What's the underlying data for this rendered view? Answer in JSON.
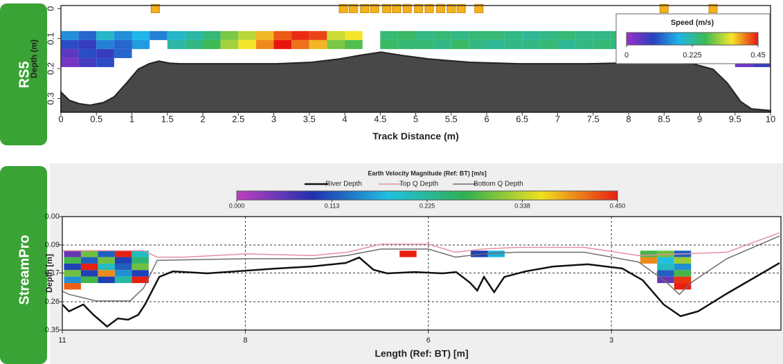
{
  "chart_data": [
    {
      "type": "heatmap",
      "label": "RS5",
      "xlabel": "Track Distance (m)",
      "ylabel": "Depth (m)",
      "xlim": [
        0,
        10
      ],
      "xticks": [
        0,
        0.5,
        1,
        1.5,
        2,
        2.5,
        3,
        3.5,
        4,
        4.5,
        5,
        5.5,
        6,
        6.5,
        7,
        7.5,
        8,
        8.5,
        9,
        9.5,
        10
      ],
      "ylim": [
        -0.01,
        0.345
      ],
      "yticks": [
        0,
        0.1,
        0.2,
        0.3
      ],
      "y_inverted": true,
      "grid": false,
      "colorbar": {
        "title": "Speed (m/s)",
        "clim": [
          0,
          0.45
        ],
        "ticks": [
          0,
          0.225,
          0.45
        ],
        "colors": [
          "#9b30c8",
          "#2b3fbf",
          "#1fb5e8",
          "#3cba54",
          "#f5e52a",
          "#e8150f"
        ]
      },
      "cells": {
        "x": [
          0.125,
          0.375,
          0.625,
          0.875,
          1.125,
          1.375,
          1.625,
          1.875,
          2.125,
          2.375,
          2.625,
          2.875,
          3.125,
          3.375,
          3.625,
          3.875,
          4.125,
          4.375,
          4.625,
          4.875,
          5.125,
          5.375,
          5.625,
          5.875,
          6.125,
          6.375,
          6.625,
          6.875,
          7.125,
          7.375,
          7.625,
          7.875,
          8.125,
          8.375,
          8.625,
          8.875,
          9.125,
          9.375,
          9.625,
          9.875
        ],
        "depth": [
          0.09,
          0.12,
          0.15,
          0.18
        ],
        "speed": [
          [
            0.15,
            0.12,
            0.2,
            0.15,
            0.18,
            0.14,
            0.2,
            0.22,
            0.25,
            0.3,
            0.33,
            0.38,
            0.42,
            0.44,
            0.43,
            0.34,
            0.36,
            null,
            0.25,
            0.26,
            0.24,
            0.25,
            0.24,
            0.25,
            0.25,
            0.24,
            0.23,
            0.24,
            0.25,
            0.24,
            0.24,
            0.25,
            0.24,
            0.23,
            0.24,
            0.24,
            0.23,
            null,
            0.1,
            0.12
          ],
          [
            0.1,
            0.08,
            0.14,
            0.12,
            0.16,
            null,
            0.22,
            0.24,
            0.27,
            0.32,
            0.36,
            0.4,
            0.45,
            0.41,
            0.38,
            0.3,
            0.28,
            null,
            0.26,
            0.25,
            0.25,
            0.24,
            0.26,
            0.24,
            0.23,
            0.24,
            0.24,
            0.25,
            0.23,
            0.24,
            0.25,
            0.24,
            0.24,
            0.23,
            0.24,
            0.25,
            0.24,
            null,
            0.08,
            0.11
          ],
          [
            0.05,
            0.1,
            0.08,
            0.12,
            null,
            null,
            null,
            null,
            null,
            null,
            null,
            null,
            null,
            null,
            null,
            null,
            null,
            null,
            null,
            null,
            null,
            null,
            null,
            null,
            null,
            null,
            null,
            null,
            null,
            null,
            null,
            null,
            null,
            null,
            null,
            null,
            null,
            null,
            0.06,
            0.09
          ],
          [
            0.03,
            0.07,
            0.1,
            null,
            null,
            null,
            null,
            null,
            null,
            null,
            null,
            null,
            null,
            null,
            null,
            null,
            null,
            null,
            null,
            null,
            null,
            null,
            null,
            null,
            null,
            null,
            null,
            null,
            null,
            null,
            null,
            null,
            null,
            null,
            null,
            null,
            null,
            null,
            0.04,
            0.08
          ]
        ]
      },
      "series": [
        {
          "color": "#484848",
          "fill": true,
          "x": [
            0,
            0.12,
            0.26,
            0.41,
            0.6,
            0.75,
            0.94,
            1.09,
            1.24,
            1.38,
            1.53,
            1.68,
            2.07,
            3.04,
            3.53,
            3.92,
            4.21,
            4.51,
            4.8,
            5.19,
            5.76,
            6.46,
            7.43,
            8.41,
            8.9,
            9.19,
            9.39,
            9.58,
            9.73,
            10
          ],
          "values": [
            0.278,
            0.306,
            0.317,
            0.322,
            0.313,
            0.294,
            0.244,
            0.202,
            0.184,
            0.175,
            0.182,
            0.184,
            0.184,
            0.184,
            0.179,
            0.168,
            0.156,
            0.145,
            0.156,
            0.168,
            0.179,
            0.184,
            0.184,
            0.179,
            0.184,
            0.202,
            0.248,
            0.31,
            0.334,
            0.34
          ]
        }
      ],
      "markers": {
        "color": "#f7b21a",
        "x": [
          1.33,
          3.98,
          4.12,
          4.28,
          4.42,
          4.59,
          4.73,
          4.88,
          5.04,
          5.19,
          5.35,
          5.5,
          5.64,
          5.89,
          8.5,
          9.19
        ]
      }
    },
    {
      "type": "heatmap",
      "label": "StreamPro",
      "xlabel": "Length (Ref: BT) [m]",
      "ylabel": "Depth [m]",
      "xlim": [
        11,
        0.4
      ],
      "xticks": [
        11,
        {
          "value": 8.3,
          "label": "8"
        },
        {
          "value": 5.6,
          "label": "6"
        },
        {
          "value": 2.9,
          "label": "3"
        }
      ],
      "ylim": [
        0,
        0.35
      ],
      "yticks": [
        {
          "value": 0,
          "label": "0.00"
        },
        {
          "value": 0.0875,
          "label": "0.09"
        },
        {
          "value": 0.174,
          "label": "0.17"
        },
        {
          "value": 0.2625,
          "label": "0.26"
        },
        0.35
      ],
      "y_inverted": true,
      "grid": true,
      "colorbar": {
        "title": "Earth Velocity Magnitude (Ref: BT) [m/s]",
        "clim": [
          0,
          0.45
        ],
        "ticks": [
          {
            "value": 0,
            "label": "0.000"
          },
          {
            "value": 0.1125,
            "label": "0.113"
          },
          {
            "value": 0.225,
            "label": "0.225"
          },
          {
            "value": 0.3375,
            "label": "0.338"
          },
          {
            "value": 0.45,
            "label": "0.450"
          }
        ],
        "colors": [
          "#c040c0",
          "#2030b0",
          "#20c0e0",
          "#30b050",
          "#f0e020",
          "#e82010"
        ]
      },
      "cells": {
        "x": [
          10.85,
          10.6,
          10.35,
          10.1,
          9.85,
          5.9,
          4.85,
          4.6,
          2.35,
          2.1,
          1.85
        ],
        "depth": [
          0.115,
          0.135,
          0.155,
          0.175,
          0.195,
          0.215
        ],
        "speed": [
          [
            0.05,
            0.3,
            0.12,
            0.45,
            0.2,
            0.45,
            0.1,
            0.17,
            0.28,
            0.3,
            0.12
          ],
          [
            0.28,
            0.12,
            0.3,
            0.1,
            0.25,
            null,
            null,
            null,
            0.4,
            0.18,
            0.32
          ],
          [
            0.1,
            0.45,
            0.2,
            0.12,
            0.3,
            null,
            null,
            null,
            null,
            0.2,
            0.15
          ],
          [
            0.3,
            0.1,
            0.4,
            0.15,
            0.1,
            null,
            null,
            null,
            null,
            0.12,
            0.28
          ],
          [
            0.15,
            0.28,
            0.1,
            0.22,
            0.45,
            null,
            null,
            null,
            null,
            0.05,
            0.44
          ],
          [
            0.42,
            null,
            null,
            null,
            null,
            null,
            null,
            null,
            null,
            null,
            0.45
          ]
        ]
      },
      "series": [
        {
          "name": "River Depth",
          "color": "#111111",
          "x": [
            11,
            10.9,
            10.69,
            10.54,
            10.34,
            10.18,
            10.03,
            9.88,
            9.78,
            9.57,
            9.37,
            8.86,
            7.84,
            7.33,
            6.82,
            6.62,
            6.41,
            6.21,
            5.8,
            5.39,
            5.19,
            4.99,
            4.88,
            4.78,
            4.63,
            4.48,
            4.17,
            3.76,
            3.25,
            2.74,
            2.44,
            2.13,
            1.88,
            1.62,
            1.21,
            0.42
          ],
          "values": [
            0.271,
            0.292,
            0.271,
            0.303,
            0.339,
            0.314,
            0.318,
            0.303,
            0.271,
            0.186,
            0.169,
            0.175,
            0.16,
            0.154,
            0.143,
            0.126,
            0.164,
            0.175,
            0.171,
            0.175,
            0.171,
            0.203,
            0.228,
            0.186,
            0.233,
            0.186,
            0.169,
            0.154,
            0.147,
            0.16,
            0.196,
            0.271,
            0.307,
            0.292,
            0.239,
            0.143
          ]
        },
        {
          "name": "Top Q Depth",
          "color": "#e38fa2",
          "x": [
            11,
            9.8,
            9.6,
            9.2,
            8.3,
            7.3,
            6.8,
            6.3,
            5.6,
            5.2,
            4.8,
            4.3,
            3.3,
            2.5,
            1.2,
            0.42
          ],
          "values": [
            0.105,
            0.105,
            0.125,
            0.125,
            0.115,
            0.12,
            0.11,
            0.085,
            0.085,
            0.11,
            0.1,
            0.095,
            0.095,
            0.12,
            0.11,
            0.05
          ]
        },
        {
          "name": "Bottom Q Depth",
          "color": "#6e6e6e",
          "x": [
            11,
            10.9,
            10.5,
            10,
            9.8,
            9.6,
            8.3,
            7.3,
            6.8,
            6.3,
            5.6,
            5.2,
            4.8,
            4.3,
            3.3,
            2.5,
            2.1,
            1.9,
            1.7,
            1.2,
            0.42
          ],
          "values": [
            0.23,
            0.24,
            0.26,
            0.26,
            0.22,
            0.135,
            0.13,
            0.13,
            0.12,
            0.1,
            0.1,
            0.125,
            0.115,
            0.11,
            0.11,
            0.14,
            0.2,
            0.24,
            0.2,
            0.13,
            0.06
          ]
        }
      ]
    }
  ]
}
